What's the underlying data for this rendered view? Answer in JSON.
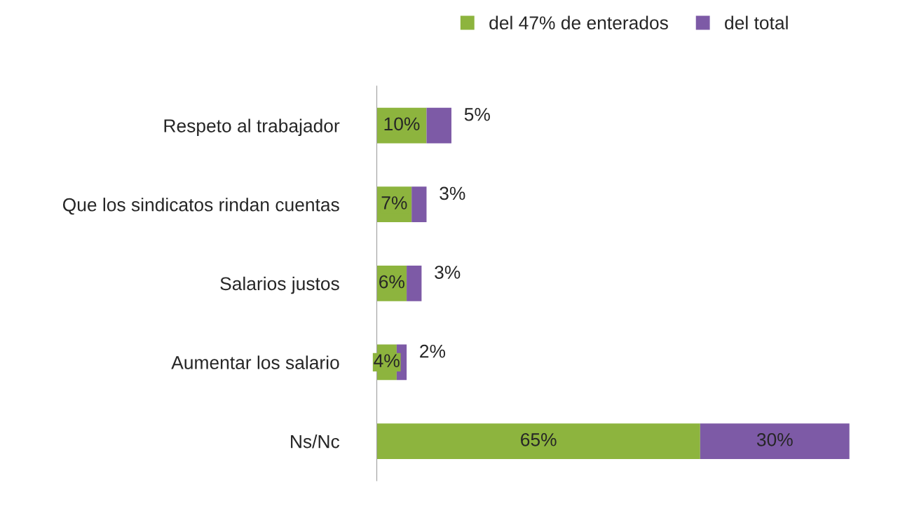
{
  "chart_data": {
    "type": "bar",
    "orientation": "horizontal",
    "stacked": true,
    "categories": [
      "Respeto al trabajador",
      "Que los sindicatos rindan cuentas",
      "Salarios justos",
      "Aumentar los salario",
      "Ns/Nc"
    ],
    "series": [
      {
        "name": "del 47% de enterados",
        "color": "#8db43e",
        "values": [
          10,
          7,
          6,
          4,
          65
        ],
        "value_labels": [
          "10%",
          "7%",
          "6%",
          "4%",
          "65%"
        ]
      },
      {
        "name": "del total",
        "color": "#7d5aa6",
        "values": [
          5,
          3,
          3,
          2,
          30
        ],
        "value_labels": [
          "5%",
          "3%",
          "3%",
          "2%",
          "30%"
        ]
      }
    ],
    "legend": "top",
    "grid": false
  }
}
